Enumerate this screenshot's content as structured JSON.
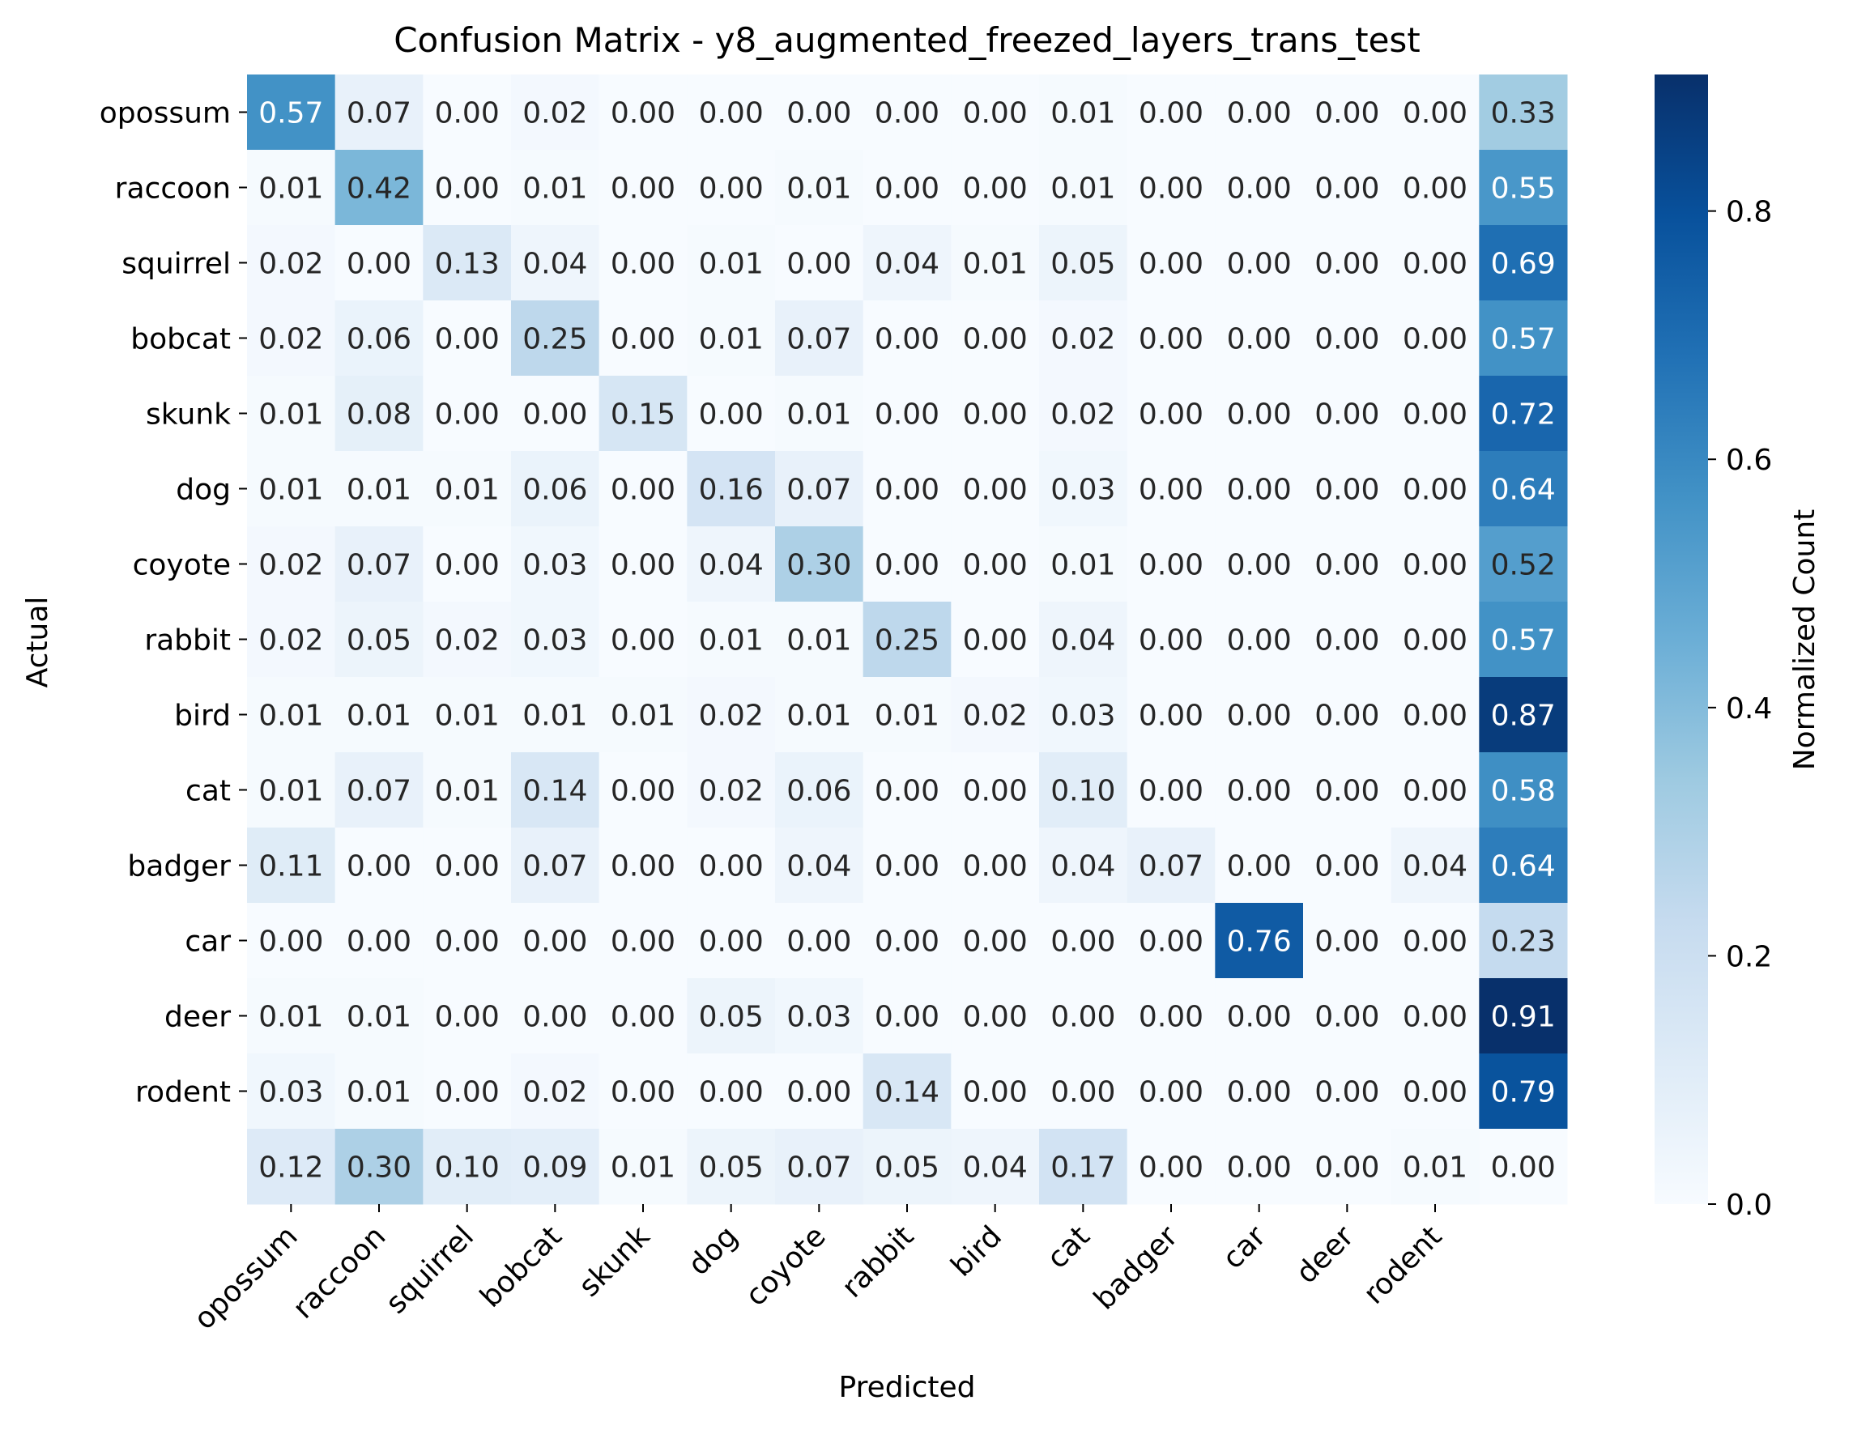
{
  "chart_data": {
    "type": "heatmap",
    "title": "Confusion Matrix - y8_augmented_freezed_layers_trans_test",
    "xlabel": "Predicted",
    "ylabel": "Actual",
    "x_tick_labels": [
      "opossum",
      "raccoon",
      "squirrel",
      "bobcat",
      "skunk",
      "dog",
      "coyote",
      "rabbit",
      "bird",
      "cat",
      "badger",
      "car",
      "deer",
      "rodent",
      ""
    ],
    "y_tick_labels": [
      "opossum",
      "raccoon",
      "squirrel",
      "bobcat",
      "skunk",
      "dog",
      "coyote",
      "rabbit",
      "bird",
      "cat",
      "badger",
      "car",
      "deer",
      "rodent",
      ""
    ],
    "values": [
      [
        0.57,
        0.07,
        0.0,
        0.02,
        0.0,
        0.0,
        0.0,
        0.0,
        0.0,
        0.01,
        0.0,
        0.0,
        0.0,
        0.0,
        0.33
      ],
      [
        0.01,
        0.42,
        0.0,
        0.01,
        0.0,
        0.0,
        0.01,
        0.0,
        0.0,
        0.01,
        0.0,
        0.0,
        0.0,
        0.0,
        0.55
      ],
      [
        0.02,
        0.0,
        0.13,
        0.04,
        0.0,
        0.01,
        0.0,
        0.04,
        0.01,
        0.05,
        0.0,
        0.0,
        0.0,
        0.0,
        0.69
      ],
      [
        0.02,
        0.06,
        0.0,
        0.25,
        0.0,
        0.01,
        0.07,
        0.0,
        0.0,
        0.02,
        0.0,
        0.0,
        0.0,
        0.0,
        0.57
      ],
      [
        0.01,
        0.08,
        0.0,
        0.0,
        0.15,
        0.0,
        0.01,
        0.0,
        0.0,
        0.02,
        0.0,
        0.0,
        0.0,
        0.0,
        0.72
      ],
      [
        0.01,
        0.01,
        0.01,
        0.06,
        0.0,
        0.16,
        0.07,
        0.0,
        0.0,
        0.03,
        0.0,
        0.0,
        0.0,
        0.0,
        0.64
      ],
      [
        0.02,
        0.07,
        0.0,
        0.03,
        0.0,
        0.04,
        0.3,
        0.0,
        0.0,
        0.01,
        0.0,
        0.0,
        0.0,
        0.0,
        0.52
      ],
      [
        0.02,
        0.05,
        0.02,
        0.03,
        0.0,
        0.01,
        0.01,
        0.25,
        0.0,
        0.04,
        0.0,
        0.0,
        0.0,
        0.0,
        0.57
      ],
      [
        0.01,
        0.01,
        0.01,
        0.01,
        0.01,
        0.02,
        0.01,
        0.01,
        0.02,
        0.03,
        0.0,
        0.0,
        0.0,
        0.0,
        0.87
      ],
      [
        0.01,
        0.07,
        0.01,
        0.14,
        0.0,
        0.02,
        0.06,
        0.0,
        0.0,
        0.1,
        0.0,
        0.0,
        0.0,
        0.0,
        0.58
      ],
      [
        0.11,
        0.0,
        0.0,
        0.07,
        0.0,
        0.0,
        0.04,
        0.0,
        0.0,
        0.04,
        0.07,
        0.0,
        0.0,
        0.04,
        0.64
      ],
      [
        0.0,
        0.0,
        0.0,
        0.0,
        0.0,
        0.0,
        0.0,
        0.0,
        0.0,
        0.0,
        0.0,
        0.76,
        0.0,
        0.0,
        0.23
      ],
      [
        0.01,
        0.01,
        0.0,
        0.0,
        0.0,
        0.05,
        0.03,
        0.0,
        0.0,
        0.0,
        0.0,
        0.0,
        0.0,
        0.0,
        0.91
      ],
      [
        0.03,
        0.01,
        0.0,
        0.02,
        0.0,
        0.0,
        0.0,
        0.14,
        0.0,
        0.0,
        0.0,
        0.0,
        0.0,
        0.0,
        0.79
      ],
      [
        0.12,
        0.3,
        0.1,
        0.09,
        0.01,
        0.05,
        0.07,
        0.05,
        0.04,
        0.17,
        0.0,
        0.0,
        0.0,
        0.01,
        0.0
      ]
    ],
    "colorbar": {
      "label": "Normalized Count",
      "range": [
        0.0,
        0.91
      ],
      "ticks": [
        "0.0",
        "0.2",
        "0.4",
        "0.6",
        "0.8"
      ],
      "tick_values": [
        0.0,
        0.2,
        0.4,
        0.6,
        0.8
      ]
    },
    "colormap": "Blues",
    "colormap_stops": [
      "#f7fbff",
      "#deebf7",
      "#c6dbef",
      "#9ecae1",
      "#6baed6",
      "#4292c6",
      "#2171b5",
      "#08519c",
      "#08306b"
    ],
    "grid": false
  }
}
